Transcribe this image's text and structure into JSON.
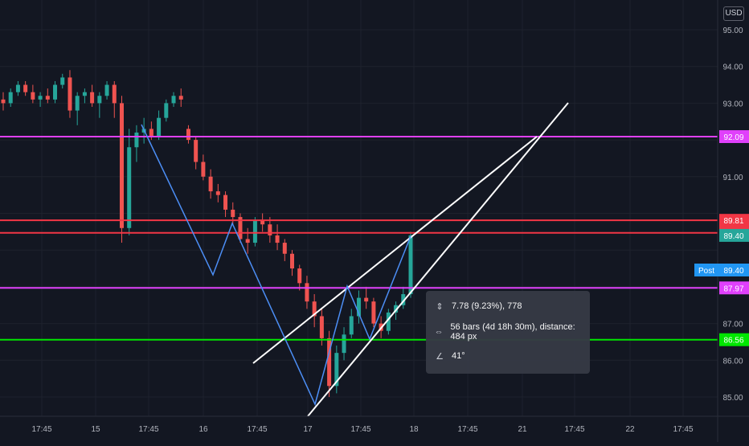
{
  "currency": "USD",
  "chart_data": {
    "type": "candlestick",
    "ylim": [
      84.5,
      95.7
    ],
    "y_ticks": [
      85.0,
      86.0,
      87.0,
      89.4,
      91.0,
      93.0,
      94.0,
      95.0
    ],
    "y_tick_labels": [
      "85.00",
      "86.00",
      "87.00",
      "89.40",
      "91.00",
      "93.00",
      "94.00",
      "95.00"
    ],
    "x_tick_labels": [
      "17:45",
      "15",
      "17:45",
      "16",
      "17:45",
      "17",
      "17:45",
      "18",
      "17:45",
      "21",
      "17:45",
      "22",
      "17:45"
    ],
    "horizontal_lines": [
      {
        "label": "92.09",
        "value": 92.09,
        "color": "#e040fb"
      },
      {
        "label": "89.81",
        "value": 89.81,
        "color": "#f23645"
      },
      {
        "label": "89.47",
        "value": 89.47,
        "color": "#f23645"
      },
      {
        "label": "87.97",
        "value": 87.97,
        "color": "#e040fb"
      },
      {
        "label": "86.56",
        "value": 86.56,
        "color": "#00e600"
      }
    ],
    "price_labels": [
      {
        "label": "89.40",
        "value": 89.4,
        "color": "#26a69a"
      },
      {
        "label": "89.40",
        "value": 89.4,
        "tag": "Post",
        "color": "#2196f3"
      }
    ],
    "candles": [
      [
        93.1,
        93.3,
        92.8,
        93.0
      ],
      [
        93.0,
        93.4,
        92.9,
        93.3
      ],
      [
        93.3,
        93.6,
        93.2,
        93.5
      ],
      [
        93.5,
        93.6,
        93.2,
        93.3
      ],
      [
        93.3,
        93.5,
        93.0,
        93.1
      ],
      [
        93.1,
        93.3,
        92.9,
        93.2
      ],
      [
        93.2,
        93.4,
        93.0,
        93.1
      ],
      [
        93.1,
        93.6,
        93.0,
        93.5
      ],
      [
        93.5,
        93.8,
        93.4,
        93.7
      ],
      [
        93.7,
        93.9,
        92.6,
        92.8
      ],
      [
        92.8,
        93.3,
        92.4,
        93.2
      ],
      [
        93.2,
        93.4,
        93.0,
        93.3
      ],
      [
        93.3,
        93.5,
        92.9,
        93.0
      ],
      [
        93.0,
        93.3,
        92.6,
        93.2
      ],
      [
        93.2,
        93.6,
        93.1,
        93.5
      ],
      [
        93.5,
        93.6,
        92.6,
        93.0
      ],
      [
        93.0,
        93.2,
        89.2,
        89.6
      ],
      [
        89.6,
        92.3,
        89.4,
        91.8
      ],
      [
        91.8,
        92.4,
        91.4,
        92.2
      ],
      [
        92.2,
        92.6,
        91.9,
        92.3
      ],
      [
        92.3,
        92.5,
        92.0,
        92.1
      ],
      [
        92.1,
        92.8,
        92.0,
        92.6
      ],
      [
        92.6,
        93.1,
        92.5,
        93.0
      ],
      [
        93.0,
        93.3,
        92.9,
        93.2
      ],
      [
        93.2,
        93.4,
        92.9,
        93.1
      ],
      [
        92.3,
        92.4,
        91.9,
        92.0
      ],
      [
        92.0,
        92.1,
        91.2,
        91.4
      ],
      [
        91.4,
        91.6,
        90.9,
        91.0
      ],
      [
        91.0,
        91.2,
        90.4,
        90.6
      ],
      [
        90.6,
        90.8,
        90.3,
        90.5
      ],
      [
        90.5,
        90.6,
        89.9,
        90.1
      ],
      [
        90.1,
        90.3,
        89.7,
        89.9
      ],
      [
        89.9,
        90.0,
        89.2,
        89.3
      ],
      [
        89.3,
        89.6,
        88.9,
        89.2
      ],
      [
        89.2,
        89.9,
        89.1,
        89.8
      ],
      [
        89.8,
        90.0,
        89.5,
        89.7
      ],
      [
        89.7,
        89.9,
        89.2,
        89.4
      ],
      [
        89.4,
        89.7,
        89.0,
        89.2
      ],
      [
        89.2,
        89.3,
        88.7,
        88.9
      ],
      [
        88.9,
        89.0,
        88.3,
        88.5
      ],
      [
        88.5,
        88.6,
        87.9,
        88.1
      ],
      [
        88.1,
        88.3,
        87.4,
        87.6
      ],
      [
        87.6,
        87.8,
        86.9,
        87.2
      ],
      [
        87.2,
        87.4,
        86.4,
        86.6
      ],
      [
        86.6,
        86.8,
        85.0,
        85.3
      ],
      [
        85.3,
        86.4,
        85.1,
        86.2
      ],
      [
        86.2,
        86.9,
        86.0,
        86.7
      ],
      [
        86.7,
        87.4,
        86.6,
        87.2
      ],
      [
        87.2,
        87.9,
        87.0,
        87.7
      ],
      [
        87.7,
        88.0,
        87.4,
        87.6
      ],
      [
        87.6,
        87.7,
        86.9,
        87.0
      ],
      [
        87.0,
        87.2,
        86.6,
        86.8
      ],
      [
        86.8,
        87.4,
        86.7,
        87.3
      ],
      [
        87.3,
        87.6,
        87.1,
        87.5
      ],
      [
        87.5,
        88.0,
        87.4,
        87.8
      ],
      [
        87.8,
        89.5,
        87.7,
        89.4
      ]
    ],
    "drawings": [
      {
        "kind": "line",
        "color": "#ffffff",
        "points": [
          [
            383,
            518
          ],
          [
            707,
            128
          ]
        ]
      },
      {
        "kind": "line",
        "color": "#ffffff",
        "points": [
          [
            315,
            452
          ],
          [
            668,
            170
          ]
        ]
      },
      {
        "kind": "polyline",
        "color": "#4c8ef5",
        "points": [
          [
            176,
            155
          ],
          [
            265,
            342
          ],
          [
            289,
            278
          ],
          [
            392,
            503
          ],
          [
            432,
            356
          ],
          [
            460,
            422
          ],
          [
            511,
            294
          ]
        ]
      }
    ],
    "measure": {
      "price_change": "7.78 (9.23%), 778",
      "bars": "56 bars (4d 18h 30m), distance: 484 px",
      "angle": "41°"
    }
  }
}
